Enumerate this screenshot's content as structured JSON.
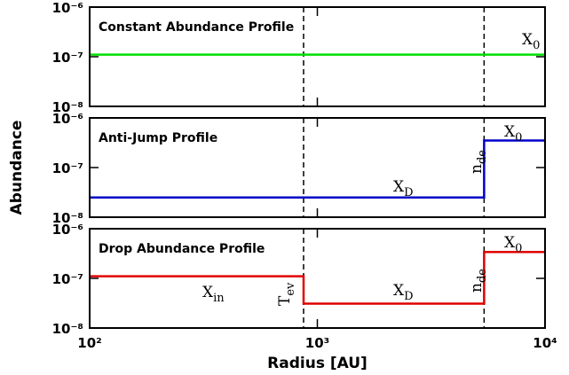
{
  "chart_data": [
    {
      "type": "line",
      "title": "Constant Abundance Profile",
      "log_x": true,
      "log_y": true,
      "xlim": [
        100,
        10000
      ],
      "ylim": [
        1e-08,
        1e-06
      ],
      "yticks": [
        {
          "value": 1e-08,
          "label": "10⁻⁸"
        },
        {
          "value": 1e-07,
          "label": "10⁻⁷"
        },
        {
          "value": 1e-06,
          "label": "10⁻⁶"
        }
      ],
      "vlines": [
        870,
        5400
      ],
      "series": [
        {
          "color": "#00e000",
          "x": [
            100,
            10000
          ],
          "values": [
            1.1e-07,
            1.1e-07
          ]
        }
      ],
      "annotations": [
        {
          "text": "X",
          "sub": "0"
        }
      ]
    },
    {
      "type": "line",
      "title": "Anti-Jump Profile",
      "ylabel": "Abundance",
      "log_x": true,
      "log_y": true,
      "xlim": [
        100,
        10000
      ],
      "ylim": [
        1e-08,
        1e-06
      ],
      "yticks": [
        {
          "value": 1e-08,
          "label": "10⁻⁸"
        },
        {
          "value": 1e-07,
          "label": "10⁻⁷"
        },
        {
          "value": 1e-06,
          "label": "10⁻⁶"
        }
      ],
      "vlines": [
        870,
        5400
      ],
      "series": [
        {
          "color": "#0000c8",
          "x": [
            100,
            5400,
            5400,
            10000
          ],
          "values": [
            2.5e-08,
            2.5e-08,
            3.5e-07,
            3.5e-07
          ]
        }
      ],
      "annotations": [
        {
          "text": "X",
          "sub": "D"
        },
        {
          "text": "X",
          "sub": "0"
        },
        {
          "text": "n",
          "sub": "de"
        }
      ]
    },
    {
      "type": "line",
      "title": "Drop Abundance Profile",
      "xlabel": "Radius [AU]",
      "log_x": true,
      "log_y": true,
      "xlim": [
        100,
        10000
      ],
      "ylim": [
        1e-08,
        1e-06
      ],
      "xticks": [
        {
          "value": 100,
          "label": "10²"
        },
        {
          "value": 1000,
          "label": "10³"
        },
        {
          "value": 10000,
          "label": "10⁴"
        }
      ],
      "yticks": [
        {
          "value": 1e-08,
          "label": "10⁻⁸"
        },
        {
          "value": 1e-07,
          "label": "10⁻⁷"
        },
        {
          "value": 1e-06,
          "label": "10⁻⁶"
        }
      ],
      "vlines": [
        870,
        5400
      ],
      "series": [
        {
          "color": "#e00000",
          "x": [
            100,
            870,
            870,
            5400,
            5400,
            10000
          ],
          "values": [
            1.1e-07,
            1.1e-07,
            3.1e-08,
            3.1e-08,
            3.4e-07,
            3.4e-07
          ]
        }
      ],
      "annotations": [
        {
          "text": "X",
          "sub": "in"
        },
        {
          "text": "T",
          "sub": "ev"
        },
        {
          "text": "X",
          "sub": "D"
        },
        {
          "text": "n",
          "sub": "de"
        },
        {
          "text": "X",
          "sub": "0"
        }
      ]
    }
  ]
}
